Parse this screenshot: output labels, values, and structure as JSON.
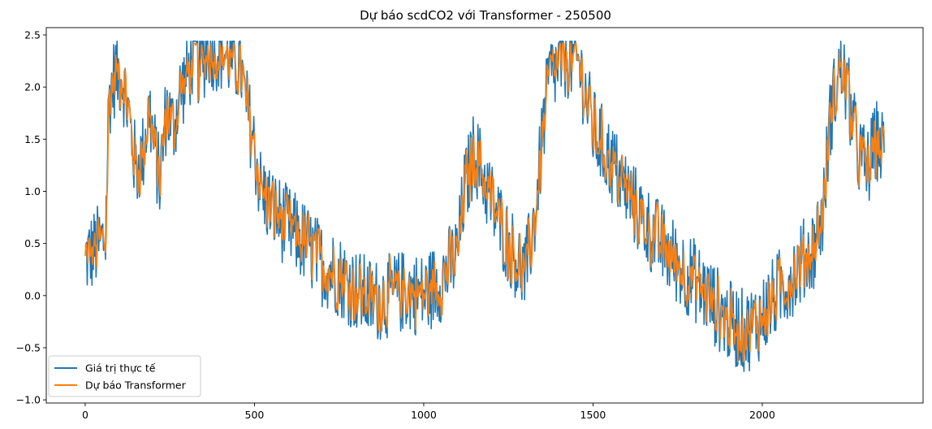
{
  "chart_data": {
    "type": "line",
    "title": "Dự báo scdCO2 với Transformer - 250500",
    "xlabel": "",
    "ylabel": "",
    "xlim": [
      -115,
      2475
    ],
    "ylim": [
      -1.03,
      2.57
    ],
    "xticks": [
      0,
      500,
      1000,
      1500,
      2000
    ],
    "xtick_labels": [
      "0",
      "500",
      "1000",
      "1500",
      "2000"
    ],
    "yticks": [
      -1.0,
      -0.5,
      0.0,
      0.5,
      1.0,
      1.5,
      2.0,
      2.5
    ],
    "ytick_labels": [
      "−1.0",
      "−0.5",
      "0.0",
      "0.5",
      "1.0",
      "1.5",
      "2.0",
      "2.5"
    ],
    "grid": false,
    "legend_position": "lower-left",
    "x_range": [
      0,
      2360
    ],
    "series": [
      {
        "name": "Giá trị thực tế",
        "color": "#1f77b4",
        "trend": [
          [
            0,
            0.35
          ],
          [
            30,
            0.45
          ],
          [
            60,
            0.55
          ],
          [
            70,
            1.9
          ],
          [
            90,
            2.15
          ],
          [
            110,
            2.1
          ],
          [
            130,
            1.7
          ],
          [
            150,
            1.2
          ],
          [
            170,
            1.35
          ],
          [
            190,
            1.8
          ],
          [
            200,
            1.5
          ],
          [
            220,
            1.1
          ],
          [
            240,
            1.8
          ],
          [
            260,
            1.6
          ],
          [
            280,
            1.95
          ],
          [
            300,
            2.1
          ],
          [
            325,
            2.35
          ],
          [
            340,
            2.15
          ],
          [
            360,
            2.38
          ],
          [
            400,
            2.35
          ],
          [
            440,
            2.25
          ],
          [
            460,
            2.2
          ],
          [
            470,
            1.9
          ],
          [
            490,
            1.6
          ],
          [
            520,
            1.0
          ],
          [
            560,
            0.8
          ],
          [
            600,
            0.65
          ],
          [
            650,
            0.5
          ],
          [
            700,
            0.3
          ],
          [
            750,
            0.2
          ],
          [
            800,
            0.05
          ],
          [
            850,
            -0.05
          ],
          [
            900,
            0.0
          ],
          [
            950,
            0.05
          ],
          [
            1000,
            0.0
          ],
          [
            1050,
            0.15
          ],
          [
            1100,
            0.4
          ],
          [
            1120,
            1.0
          ],
          [
            1150,
            1.4
          ],
          [
            1180,
            1.1
          ],
          [
            1200,
            0.9
          ],
          [
            1250,
            0.5
          ],
          [
            1300,
            0.2
          ],
          [
            1330,
            0.8
          ],
          [
            1350,
            1.5
          ],
          [
            1370,
            2.1
          ],
          [
            1400,
            2.2
          ],
          [
            1430,
            2.3
          ],
          [
            1460,
            2.2
          ],
          [
            1480,
            1.9
          ],
          [
            1500,
            1.6
          ],
          [
            1550,
            1.3
          ],
          [
            1600,
            1.0
          ],
          [
            1650,
            0.7
          ],
          [
            1700,
            0.5
          ],
          [
            1750,
            0.3
          ],
          [
            1800,
            0.15
          ],
          [
            1850,
            -0.05
          ],
          [
            1900,
            -0.25
          ],
          [
            1950,
            -0.35
          ],
          [
            2000,
            -0.2
          ],
          [
            2050,
            0.05
          ],
          [
            2100,
            0.25
          ],
          [
            2150,
            0.45
          ],
          [
            2180,
            0.8
          ],
          [
            2200,
            1.7
          ],
          [
            2230,
            2.2
          ],
          [
            2250,
            2.0
          ],
          [
            2280,
            1.4
          ],
          [
            2310,
            1.2
          ],
          [
            2340,
            1.5
          ],
          [
            2360,
            1.35
          ]
        ],
        "noise_amplitude": 0.48
      },
      {
        "name": "Dự báo Transformer",
        "color": "#ff7f0e",
        "trend_same_as_series_index": 0,
        "noise_amplitude": 0.46
      }
    ]
  }
}
